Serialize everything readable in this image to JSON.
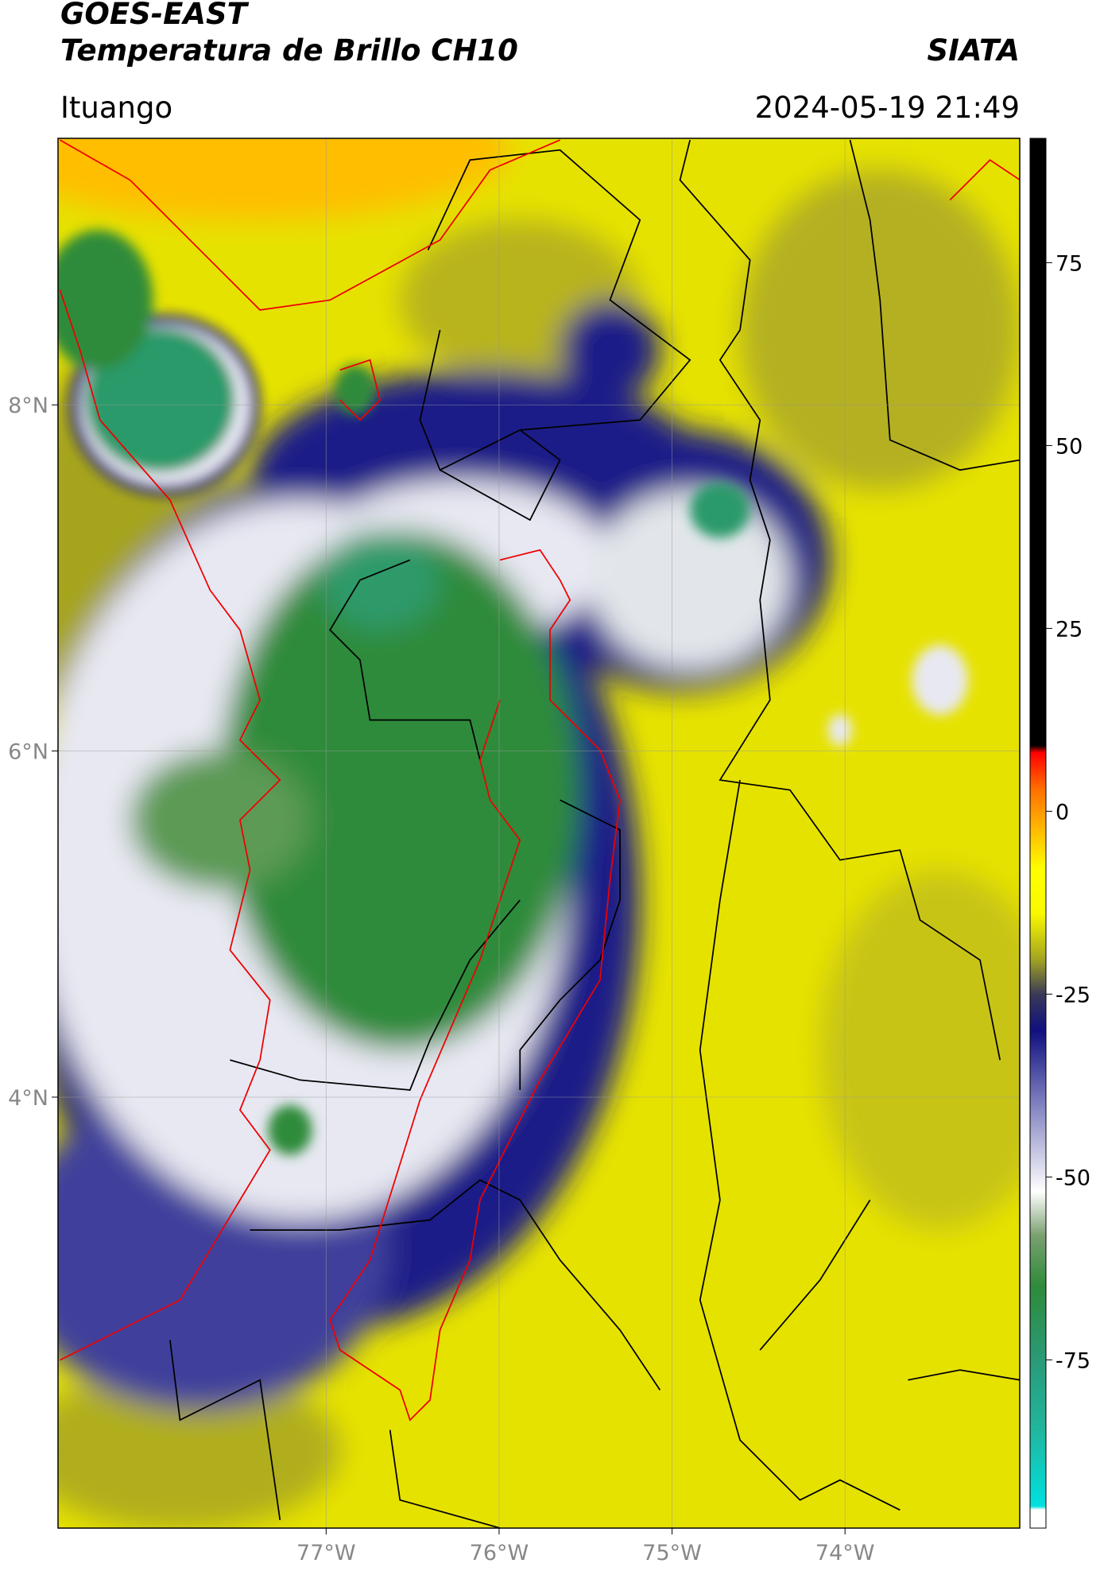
{
  "header": {
    "title": "GOES-EAST",
    "subtitle": "Temperatura de Brillo CH10",
    "source": "SIATA",
    "region": "Ituango",
    "datetime": "2024-05-19 21:49"
  },
  "map": {
    "lon_range": [
      -78.55,
      -72.99
    ],
    "lat_range": [
      1.51,
      9.54
    ],
    "grid": true,
    "lon_ticks": [
      {
        "value": -77,
        "label": "77°W"
      },
      {
        "value": -76,
        "label": "76°W"
      },
      {
        "value": -75,
        "label": "75°W"
      },
      {
        "value": -74,
        "label": "74°W"
      }
    ],
    "lat_ticks": [
      {
        "value": 8,
        "label": "8°N"
      },
      {
        "value": 6,
        "label": "6°N"
      },
      {
        "value": 4,
        "label": "4°N"
      }
    ]
  },
  "colorbar": {
    "range": [
      -98,
      92
    ],
    "ticks": [
      75,
      50,
      25,
      0,
      -25,
      -50,
      -75
    ],
    "stops": [
      {
        "value": -98,
        "color": "#ffffff"
      },
      {
        "value": -95.5,
        "color": "#ffffff"
      },
      {
        "value": -95,
        "color": "#00e0e0"
      },
      {
        "value": -85,
        "color": "#20b8a0"
      },
      {
        "value": -75,
        "color": "#2a9a78"
      },
      {
        "value": -65,
        "color": "#2e8b3a"
      },
      {
        "value": -58,
        "color": "#7aa070"
      },
      {
        "value": -52,
        "color": "#ffffff"
      },
      {
        "value": -40,
        "color": "#8080c0"
      },
      {
        "value": -30,
        "color": "#101080"
      },
      {
        "value": -25,
        "color": "#3a3a58"
      },
      {
        "value": -20,
        "color": "#a8a820"
      },
      {
        "value": -14,
        "color": "#f8f800"
      },
      {
        "value": -8,
        "color": "#ffff00"
      },
      {
        "value": -3,
        "color": "#ffc000"
      },
      {
        "value": 3,
        "color": "#ff7000"
      },
      {
        "value": 8,
        "color": "#ff0000"
      },
      {
        "value": 9,
        "color": "#000000"
      },
      {
        "value": 92,
        "color": "#000000"
      }
    ]
  }
}
